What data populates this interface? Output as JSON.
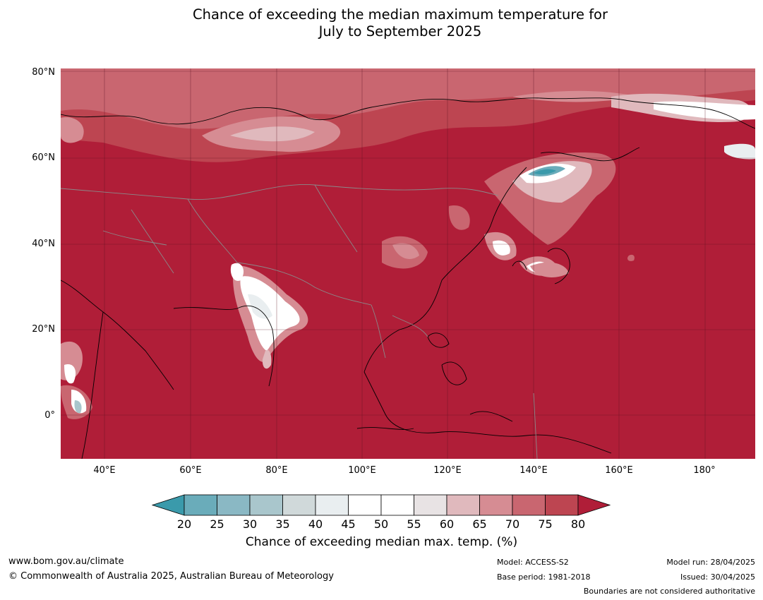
{
  "title": {
    "line1": "Chance of exceeding the median maximum temperature for",
    "line2": "July to September 2025"
  },
  "lat_labels": [
    "80°N",
    "60°N",
    "40°N",
    "20°N",
    "0°"
  ],
  "lon_labels": [
    "40°E",
    "60°E",
    "80°E",
    "100°E",
    "120°E",
    "140°E",
    "160°E",
    "180°"
  ],
  "colorbar": {
    "ticks": [
      "20",
      "25",
      "30",
      "35",
      "40",
      "45",
      "50",
      "55",
      "60",
      "65",
      "70",
      "75",
      "80"
    ],
    "colors": [
      "#3a9aab",
      "#6aacba",
      "#8ab8c4",
      "#a9c6cc",
      "#d0d9da",
      "#e9eef0",
      "#ffffff",
      "#ffffff",
      "#e8e3e4",
      "#e0b9bd",
      "#d68c93",
      "#c96670",
      "#bd4551",
      "#b01e38"
    ],
    "label": "Chance of exceeding median max. temp. (%)"
  },
  "footer": {
    "website": "www.bom.gov.au/climate",
    "copyright": "© Commonwealth of Australia 2025, Australian Bureau of Meteorology",
    "model": "Model: ACCESS-S2",
    "base_period": "Base period: 1981-2018",
    "model_run": "Model run: 28/04/2025",
    "issued": "Issued: 30/04/2025",
    "disclaimer": "Boundaries are not considered authoritative"
  }
}
